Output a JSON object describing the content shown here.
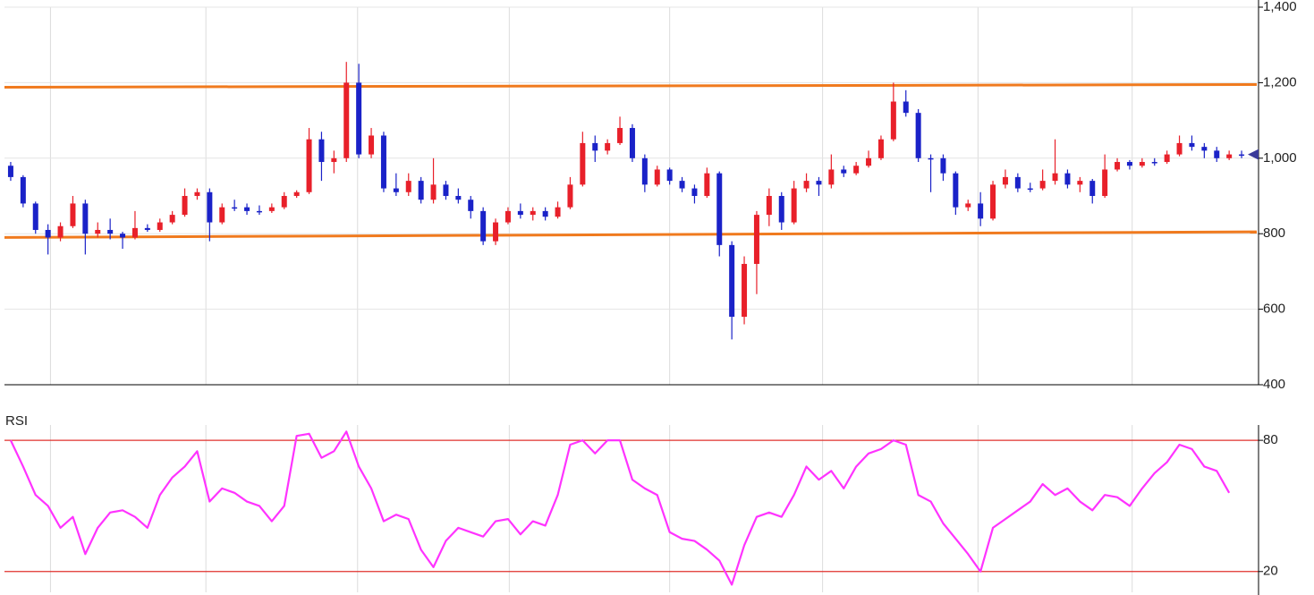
{
  "chart_data": [
    {
      "type": "candlestick",
      "open": [
        980,
        950,
        880,
        810,
        790,
        820,
        880,
        800,
        810,
        800,
        790,
        815,
        810,
        830,
        850,
        900,
        910,
        830,
        870,
        870,
        860,
        860,
        870,
        900,
        910,
        1050,
        990,
        1000,
        1200,
        1010,
        1060,
        920,
        910,
        940,
        890,
        930,
        900,
        890,
        860,
        780,
        830,
        860,
        850,
        860,
        845,
        870,
        930,
        1040,
        1020,
        1040,
        1080,
        1000,
        930,
        970,
        940,
        920,
        900,
        960,
        770,
        580,
        720,
        850,
        900,
        830,
        920,
        940,
        930,
        970,
        960,
        980,
        1000,
        1050,
        1150,
        1120,
        1000,
        1000,
        960,
        870,
        880,
        840,
        930,
        950,
        920,
        920,
        940,
        960,
        930,
        940,
        900,
        970,
        990,
        980,
        990,
        990,
        1010,
        1040,
        1030,
        1020,
        1000,
        1010
      ],
      "high": [
        990,
        955,
        885,
        825,
        830,
        900,
        890,
        830,
        840,
        805,
        860,
        825,
        840,
        860,
        920,
        920,
        920,
        880,
        890,
        880,
        875,
        880,
        910,
        915,
        1080,
        1070,
        1020,
        1255,
        1250,
        1080,
        1070,
        960,
        960,
        950,
        1000,
        940,
        920,
        900,
        870,
        840,
        870,
        880,
        870,
        870,
        885,
        950,
        1070,
        1060,
        1050,
        1110,
        1090,
        1010,
        980,
        975,
        950,
        930,
        975,
        965,
        780,
        740,
        860,
        920,
        910,
        940,
        960,
        950,
        1010,
        980,
        990,
        1020,
        1060,
        1200,
        1180,
        1130,
        1010,
        1010,
        965,
        890,
        910,
        940,
        970,
        960,
        935,
        970,
        1050,
        970,
        950,
        945,
        1010,
        1000,
        995,
        1000,
        1000,
        1020,
        1060,
        1060,
        1040,
        1030,
        1020,
        1020
      ],
      "low": [
        940,
        870,
        800,
        745,
        780,
        815,
        745,
        790,
        785,
        760,
        785,
        805,
        805,
        825,
        845,
        890,
        780,
        825,
        860,
        850,
        850,
        855,
        865,
        895,
        905,
        940,
        960,
        990,
        1000,
        1000,
        910,
        900,
        900,
        880,
        880,
        890,
        880,
        840,
        770,
        770,
        825,
        840,
        835,
        835,
        840,
        865,
        925,
        990,
        1010,
        1035,
        990,
        910,
        925,
        930,
        910,
        880,
        895,
        740,
        520,
        560,
        640,
        820,
        810,
        825,
        910,
        900,
        920,
        950,
        955,
        975,
        995,
        1045,
        1110,
        990,
        910,
        940,
        850,
        860,
        820,
        835,
        920,
        910,
        910,
        915,
        930,
        920,
        910,
        880,
        895,
        965,
        970,
        975,
        980,
        985,
        1005,
        1020,
        1000,
        990,
        995,
        1000
      ],
      "close": [
        950,
        880,
        810,
        790,
        820,
        880,
        800,
        810,
        800,
        790,
        815,
        810,
        830,
        850,
        900,
        910,
        830,
        870,
        870,
        860,
        860,
        870,
        900,
        910,
        1050,
        990,
        1000,
        1200,
        1010,
        1060,
        920,
        910,
        940,
        890,
        930,
        900,
        890,
        860,
        780,
        830,
        860,
        850,
        860,
        845,
        870,
        930,
        1040,
        1020,
        1040,
        1080,
        1000,
        930,
        970,
        940,
        920,
        900,
        960,
        770,
        580,
        720,
        850,
        900,
        830,
        920,
        940,
        930,
        970,
        960,
        980,
        1000,
        1050,
        1150,
        1120,
        1000,
        1000,
        960,
        870,
        880,
        840,
        930,
        950,
        920,
        920,
        940,
        960,
        930,
        940,
        900,
        970,
        990,
        980,
        990,
        990,
        1010,
        1040,
        1030,
        1020,
        1000,
        1010,
        1010
      ],
      "up_color": "#e8202a",
      "down_color": "#1a22c8",
      "ylim": [
        400,
        1400
      ],
      "yticks": [
        400,
        600,
        800,
        {
          "value": 1000,
          "label": "1,000"
        },
        {
          "value": 1200,
          "label": "1,200"
        },
        {
          "value": 1400,
          "label": "1,400"
        }
      ],
      "xgrid": [
        3.7,
        16.2,
        28.4,
        40.6,
        53.5,
        65.8,
        78.3,
        90.7
      ],
      "xlim": [
        0,
        100
      ],
      "trend_lines": [
        {
          "color": "#f07a1e",
          "x": [
            0,
            100
          ],
          "y": [
            1188,
            1195
          ]
        },
        {
          "color": "#f07a1e",
          "x": [
            0,
            100
          ],
          "y": [
            790,
            805
          ]
        }
      ],
      "grid": true
    },
    {
      "type": "line",
      "title": "RSI",
      "values": [
        80,
        68,
        55,
        50,
        40,
        45,
        28,
        40,
        47,
        48,
        45,
        40,
        55,
        63,
        68,
        75,
        52,
        58,
        56,
        52,
        50,
        43,
        50,
        82,
        83,
        72,
        75,
        84,
        68,
        58,
        43,
        46,
        44,
        30,
        22,
        34,
        40,
        38,
        36,
        43,
        44,
        37,
        43,
        41,
        55,
        78,
        80,
        74,
        80,
        80,
        62,
        58,
        55,
        38,
        35,
        34,
        30,
        25,
        14,
        32,
        45,
        47,
        45,
        55,
        68,
        62,
        66,
        58,
        68,
        74,
        76,
        80,
        78,
        55,
        52,
        42,
        35,
        28,
        20,
        40,
        44,
        48,
        52,
        60,
        55,
        58,
        52,
        48,
        55,
        54,
        50,
        58,
        65,
        70,
        78,
        76,
        68,
        66,
        56,
        null
      ],
      "color": "#ff33ff",
      "level_color": "#e0312c",
      "ylim": [
        10.5,
        87
      ],
      "yticks": [
        20,
        80
      ],
      "xgrid": [
        3.7,
        16.2,
        28.4,
        40.6,
        53.5,
        65.8,
        78.3,
        90.7
      ],
      "xlim": [
        0,
        100
      ]
    }
  ]
}
